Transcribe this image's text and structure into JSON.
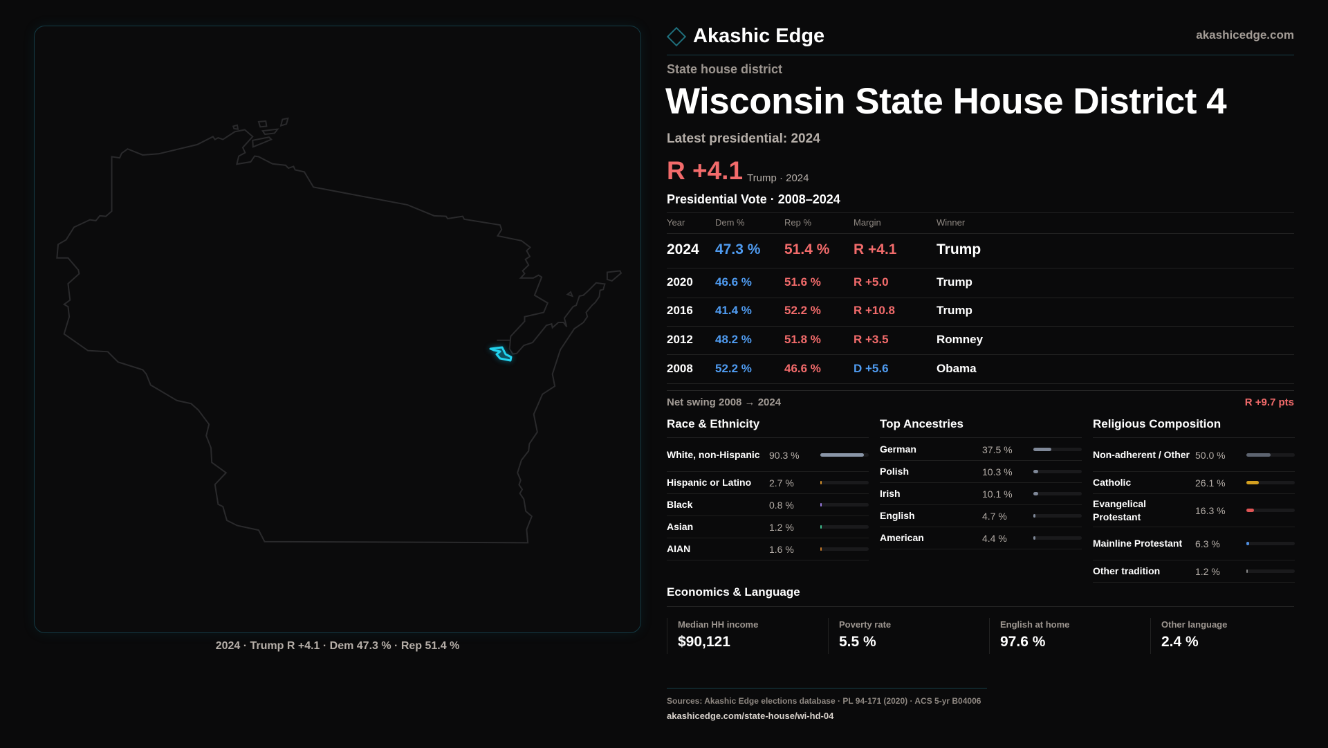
{
  "brand": {
    "name": "Akashic Edge",
    "site": "akashicedge.com",
    "logo_icon": "diamond-icon"
  },
  "header": {
    "kicker": "State house district",
    "title": "Wisconsin State House District 4",
    "latest": "Latest presidential: 2024",
    "margin": "R +4.1",
    "margin_sub": "Trump · 2024"
  },
  "map": {
    "caption": "2024 · Trump R +4.1 · Dem 47.3 % · Rep 51.4 %",
    "highlight_color": "#22d3ee",
    "outline_color": "#2a2a2c"
  },
  "colors": {
    "dem": "#4f9bf0",
    "rep": "#f26b6b",
    "background": "#0a0a0b"
  },
  "presidential": {
    "title": "Presidential Vote · 2008–2024",
    "columns": [
      "Year",
      "Dem %",
      "Rep %",
      "Margin",
      "Winner"
    ],
    "rows": [
      {
        "year": "2024",
        "dem": "47.3 %",
        "rep": "51.4 %",
        "margin": "R +4.1",
        "margin_party": "rep",
        "winner": "Trump"
      },
      {
        "year": "2020",
        "dem": "46.6 %",
        "rep": "51.6 %",
        "margin": "R +5.0",
        "margin_party": "rep",
        "winner": "Trump"
      },
      {
        "year": "2016",
        "dem": "41.4 %",
        "rep": "52.2 %",
        "margin": "R +10.8",
        "margin_party": "rep",
        "winner": "Trump"
      },
      {
        "year": "2012",
        "dem": "48.2 %",
        "rep": "51.8 %",
        "margin": "R +3.5",
        "margin_party": "rep",
        "winner": "Romney"
      },
      {
        "year": "2008",
        "dem": "52.2 %",
        "rep": "46.6 %",
        "margin": "D +5.6",
        "margin_party": "dem",
        "winner": "Obama"
      }
    ],
    "swing_label": "Net swing 2008 → 2024",
    "swing_value": "R +9.7 pts"
  },
  "race": {
    "title": "Race & Ethnicity",
    "items": [
      {
        "label": "White, non-Hispanic",
        "value": "90.3 %",
        "pct": 90.3,
        "color": "#8a96a8"
      },
      {
        "label": "Hispanic or Latino",
        "value": "2.7 %",
        "pct": 2.7,
        "color": "#d4902a"
      },
      {
        "label": "Black",
        "value": "0.8 %",
        "pct": 0.8,
        "color": "#9a7ae0"
      },
      {
        "label": "Asian",
        "value": "1.2 %",
        "pct": 1.2,
        "color": "#3fbf8f"
      },
      {
        "label": "AIAN",
        "value": "1.6 %",
        "pct": 1.6,
        "color": "#c87a2a"
      }
    ]
  },
  "ancestry": {
    "title": "Top Ancestries",
    "items": [
      {
        "label": "German",
        "value": "37.5 %",
        "pct": 37.5,
        "color": "#7f8898"
      },
      {
        "label": "Polish",
        "value": "10.3 %",
        "pct": 10.3,
        "color": "#7f8898"
      },
      {
        "label": "Irish",
        "value": "10.1 %",
        "pct": 10.1,
        "color": "#7f8898"
      },
      {
        "label": "English",
        "value": "4.7 %",
        "pct": 4.7,
        "color": "#7f8898"
      },
      {
        "label": "American",
        "value": "4.4 %",
        "pct": 4.4,
        "color": "#7f8898"
      }
    ]
  },
  "religion": {
    "title": "Religious Composition",
    "items": [
      {
        "label": "Non-adherent / Other",
        "value": "50.0 %",
        "pct": 50.0,
        "color": "#5d6470"
      },
      {
        "label": "Catholic",
        "value": "26.1 %",
        "pct": 26.1,
        "color": "#d4a020"
      },
      {
        "label": "Evangelical Protestant",
        "value": "16.3 %",
        "pct": 16.3,
        "color": "#e05555"
      },
      {
        "label": "Mainline Protestant",
        "value": "6.3 %",
        "pct": 6.3,
        "color": "#4f8ee0"
      },
      {
        "label": "Other tradition",
        "value": "1.2 %",
        "pct": 1.2,
        "color": "#888888"
      }
    ]
  },
  "economics": {
    "title": "Economics & Language",
    "cards": [
      {
        "label": "Median HH income",
        "value": "$90,121"
      },
      {
        "label": "Poverty rate",
        "value": "5.5 %"
      },
      {
        "label": "English at home",
        "value": "97.6 %"
      },
      {
        "label": "Other language",
        "value": "2.4 %"
      }
    ]
  },
  "footer": {
    "sources": "Sources: Akashic Edge elections database · PL 94-171 (2020) · ACS 5-yr B04006",
    "url": "akashicedge.com/state-house/wi-hd-04"
  }
}
